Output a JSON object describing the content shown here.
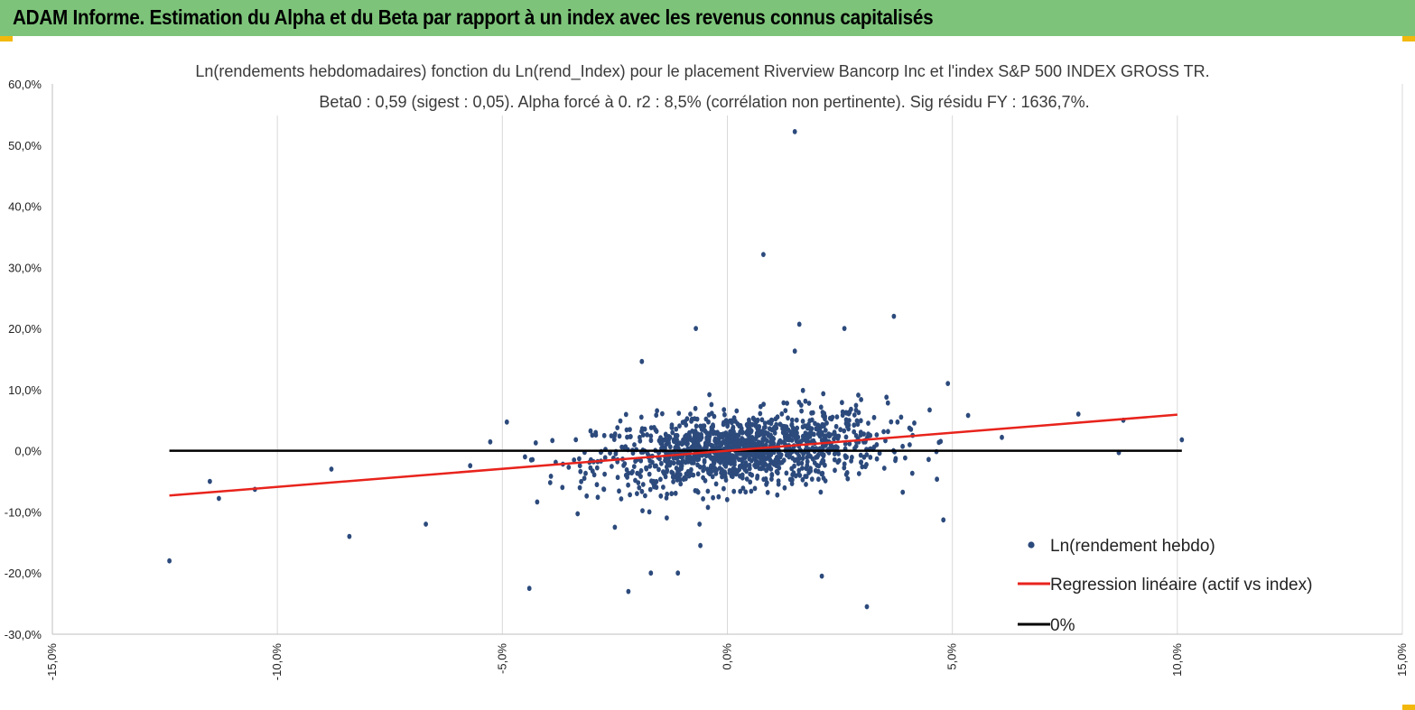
{
  "header": {
    "title": "ADAM Informe. Estimation du Alpha et du Beta par rapport à un index avec les revenus connus capitalisés"
  },
  "chart_data": {
    "type": "scatter",
    "title_line1": "Ln(rendements hebdomadaires) fonction du Ln(rend_Index) pour le placement Riverview Bancorp Inc et l'index S&P 500 INDEX GROSS TR.",
    "title_line2": "Beta0 : 0,59 (sigest : 0,05). Alpha forcé à 0. r2 : 8,5% (corrélation non pertinente). Sig résidu FY : 1636,7%.",
    "xlim": [
      -0.15,
      0.15
    ],
    "ylim": [
      -0.3,
      0.6
    ],
    "x_ticks": [
      -0.15,
      -0.1,
      -0.05,
      0.0,
      0.05,
      0.1,
      0.15
    ],
    "x_tick_labels": [
      "-15,0%",
      "-10,0%",
      "-5,0%",
      "0,0%",
      "5,0%",
      "10,0%",
      "15,0%"
    ],
    "y_ticks": [
      -0.3,
      -0.2,
      -0.1,
      0.0,
      0.1,
      0.2,
      0.3,
      0.4,
      0.5,
      0.6
    ],
    "y_tick_labels": [
      "-30,0%",
      "-20,0%",
      "-10,0%",
      "0,0%",
      "10,0%",
      "20,0%",
      "30,0%",
      "40,0%",
      "50,0%",
      "60,0%"
    ],
    "vertical_gridlines": true,
    "beta": 0.59,
    "alpha": 0,
    "legend_position": "bottom-right",
    "colors": {
      "points": "#2c4a7c",
      "regression": "#e8231c",
      "zero_line": "#000000",
      "grid": "#d9d9d9",
      "header_bg": "#7dc47a",
      "accent": "#f2b80c"
    },
    "series": [
      {
        "name": "Ln(rendement hebdo)",
        "type": "scatter",
        "notable_points": [
          [
            0.015,
            0.522
          ],
          [
            0.008,
            0.321
          ],
          [
            0.037,
            0.22
          ],
          [
            0.016,
            0.207
          ],
          [
            -0.007,
            0.2
          ],
          [
            0.026,
            0.2
          ],
          [
            0.015,
            0.163
          ],
          [
            -0.019,
            0.146
          ],
          [
            0.049,
            0.11
          ],
          [
            -0.124,
            -0.18
          ],
          [
            -0.115,
            -0.05
          ],
          [
            -0.113,
            -0.078
          ],
          [
            -0.105,
            -0.063
          ],
          [
            -0.088,
            -0.03
          ],
          [
            -0.084,
            -0.14
          ],
          [
            -0.067,
            -0.12
          ],
          [
            -0.049,
            0.047
          ],
          [
            -0.044,
            -0.225
          ],
          [
            -0.022,
            -0.23
          ],
          [
            -0.025,
            -0.125
          ],
          [
            -0.017,
            -0.2
          ],
          [
            -0.011,
            -0.2
          ],
          [
            -0.006,
            -0.155
          ],
          [
            0.021,
            -0.205
          ],
          [
            0.031,
            -0.255
          ],
          [
            0.048,
            -0.113
          ],
          [
            0.061,
            0.022
          ],
          [
            0.078,
            0.06
          ],
          [
            0.087,
            -0.003
          ],
          [
            0.088,
            0.05
          ],
          [
            0.101,
            0.018
          ]
        ],
        "cloud_summary": {
          "x_mean": 0.003,
          "x_sd": 0.016,
          "y_sd": 0.028,
          "point_count": 1300
        }
      },
      {
        "name": "Regression linéaire (actif vs index)",
        "type": "line",
        "points": [
          [
            -0.124,
            -0.0732
          ],
          [
            0.1,
            0.059
          ]
        ]
      },
      {
        "name": "0%",
        "type": "line",
        "points": [
          [
            -0.124,
            0
          ],
          [
            0.101,
            0
          ]
        ]
      }
    ]
  }
}
